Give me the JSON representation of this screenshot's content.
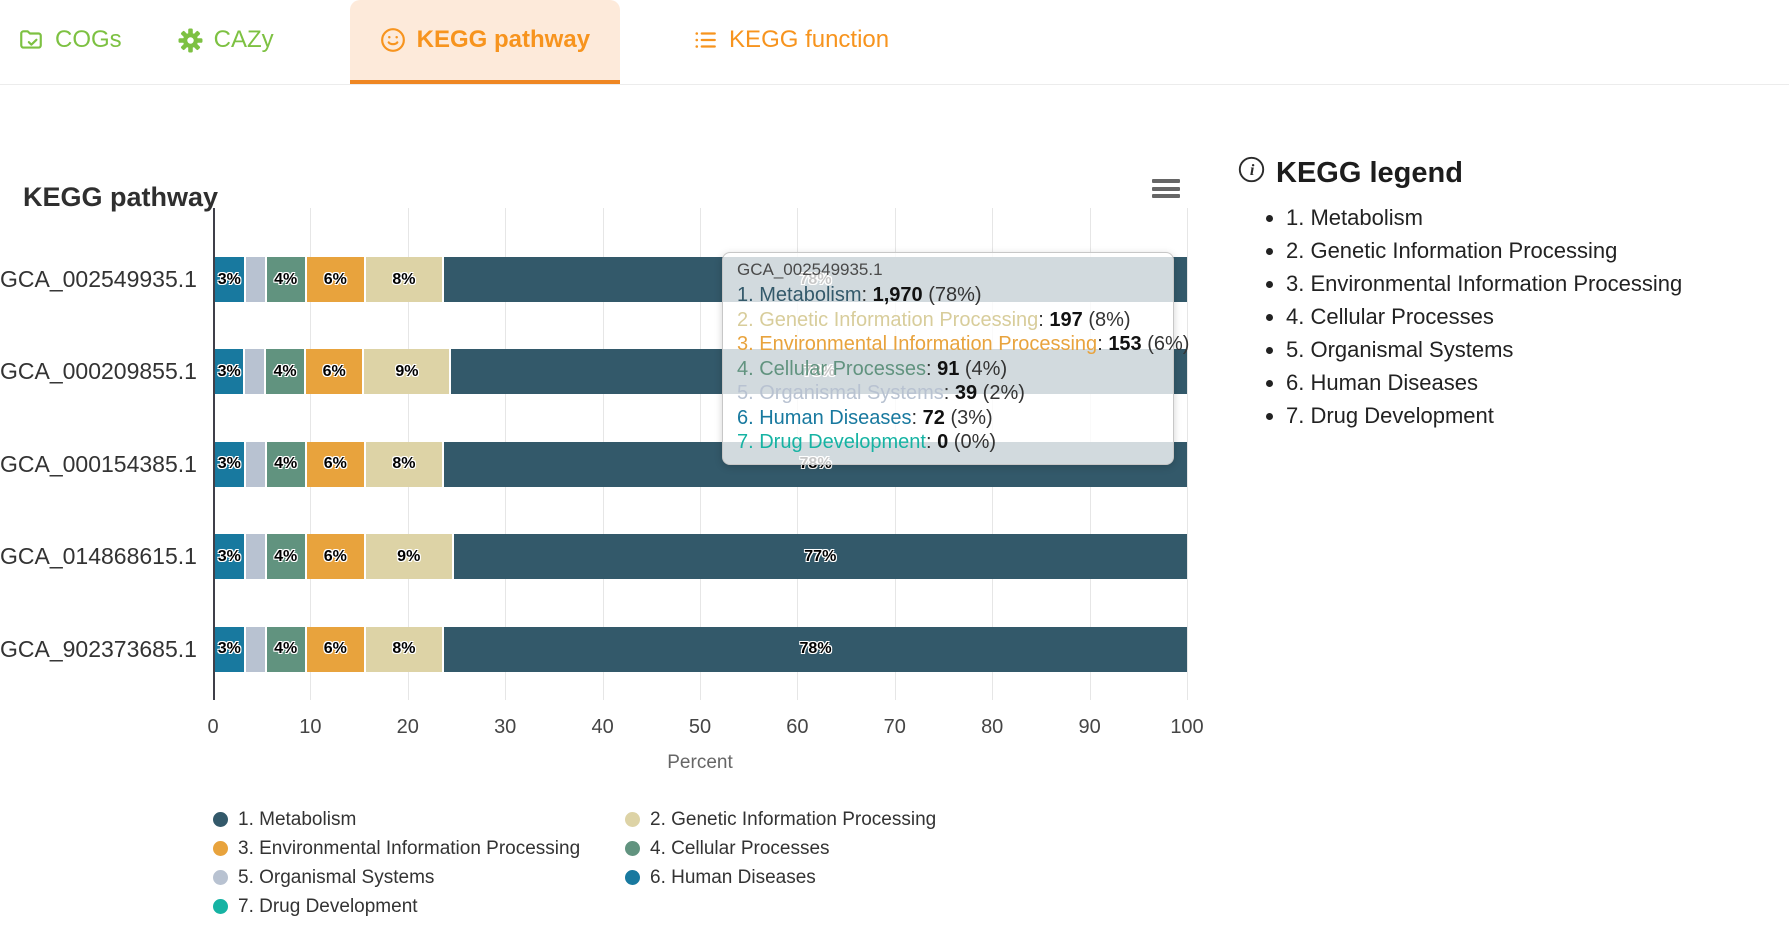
{
  "tabs": {
    "items": [
      {
        "label": "COGs",
        "icon": "folder-check-icon",
        "active": false,
        "color": "#7dc142"
      },
      {
        "label": "CAZy",
        "icon": "gear-icon",
        "active": false,
        "color": "#7dc142"
      },
      {
        "label": "KEGG pathway",
        "icon": "smiley-icon",
        "active": true,
        "color": "#f7941e"
      },
      {
        "label": "KEGG function",
        "icon": "list-icon",
        "active": false,
        "color": "#f7941e"
      }
    ]
  },
  "colors": {
    "accent_green": "#7dc142",
    "accent_orange": "#f7941e",
    "active_tab_bg": "#fdeada",
    "active_tab_underline": "#ef8723",
    "gridline": "#e6e6e6",
    "axis_line": "#3f3f49"
  },
  "icons": {
    "chart_menu": "hamburger-menu-icon",
    "legend_info": "info-circle-icon"
  },
  "chart_data": {
    "type": "bar",
    "stacking": "percent",
    "title": "KEGG pathway",
    "xlabel": "Percent",
    "ylabel": "",
    "axis_range": [
      0,
      100
    ],
    "x_ticks": [
      "0",
      "10",
      "20",
      "30",
      "40",
      "50",
      "60",
      "70",
      "80",
      "90",
      "100"
    ],
    "grid": true,
    "legend_position": "bottom",
    "categories": [
      "GCA_002549935.1",
      "GCA_000209855.1",
      "GCA_000154385.1",
      "GCA_014868615.1",
      "GCA_902373685.1"
    ],
    "series": [
      {
        "name": "6. Human Diseases",
        "color": "#18799f",
        "values": [
          3,
          3,
          3,
          3,
          3
        ],
        "labels": [
          "3%",
          "3%",
          "3%",
          "3%",
          "3%"
        ]
      },
      {
        "name": "5. Organismal Systems",
        "color": "#b8c2d1",
        "values": [
          2,
          2,
          2,
          2,
          2
        ],
        "labels": [
          "",
          "",
          "",
          "",
          ""
        ]
      },
      {
        "name": "4. Cellular Processes",
        "color": "#61937f",
        "values": [
          4,
          4,
          4,
          4,
          4
        ],
        "labels": [
          "4%",
          "4%",
          "4%",
          "4%",
          "4%"
        ]
      },
      {
        "name": "3. Environmental Information Processing",
        "color": "#e8a33d",
        "values": [
          6,
          6,
          6,
          6,
          6
        ],
        "labels": [
          "6%",
          "6%",
          "6%",
          "6%",
          "6%"
        ]
      },
      {
        "name": "2. Genetic Information Processing",
        "color": "#ddd3a6",
        "values": [
          8,
          9,
          8,
          9,
          8
        ],
        "labels": [
          "8%",
          "9%",
          "8%",
          "9%",
          "8%"
        ]
      },
      {
        "name": "1. Metabolism",
        "color": "#33596a",
        "values": [
          78,
          78,
          78,
          77,
          78
        ],
        "labels": [
          "78%",
          "78%",
          "78%",
          "77%",
          "78%"
        ]
      }
    ]
  },
  "tooltip": {
    "header": "GCA_002549935.1",
    "rows": [
      {
        "label": "1. Metabolism",
        "value": "1,970",
        "pct": "(78%)",
        "color": "#33596a"
      },
      {
        "label": "2. Genetic Information Processing",
        "value": "197",
        "pct": "(8%)",
        "color": "#d8cd9b"
      },
      {
        "label": "3. Environmental Information Processing",
        "value": "153",
        "pct": "(6%)",
        "color": "#e8a33d"
      },
      {
        "label": "4. Cellular Processes",
        "value": "91",
        "pct": "(4%)",
        "color": "#61937f"
      },
      {
        "label": "5. Organismal Systems",
        "value": "39",
        "pct": "(2%)",
        "color": "#b8c2d1"
      },
      {
        "label": "6. Human Diseases",
        "value": "72",
        "pct": "(3%)",
        "color": "#18799f"
      },
      {
        "label": "7. Drug Development",
        "value": "0",
        "pct": "(0%)",
        "color": "#16b3a3"
      }
    ]
  },
  "bottom_legend": {
    "items": [
      {
        "label": "1. Metabolism",
        "color": "#33596a"
      },
      {
        "label": "2. Genetic Information Processing",
        "color": "#ddd3a6"
      },
      {
        "label": "3. Environmental Information Processing",
        "color": "#e8a33d"
      },
      {
        "label": "4. Cellular Processes",
        "color": "#61937f"
      },
      {
        "label": "5. Organismal Systems",
        "color": "#b8c2d1"
      },
      {
        "label": "6. Human Diseases",
        "color": "#18799f"
      },
      {
        "label": "7. Drug Development",
        "color": "#16b3a3"
      }
    ]
  },
  "kegg_legend": {
    "title": "KEGG legend",
    "items": [
      "1. Metabolism",
      "2. Genetic Information Processing",
      "3. Environmental Information Processing",
      "4. Cellular Processes",
      "5. Organismal Systems",
      "6. Human Diseases",
      "7. Drug Development"
    ]
  }
}
